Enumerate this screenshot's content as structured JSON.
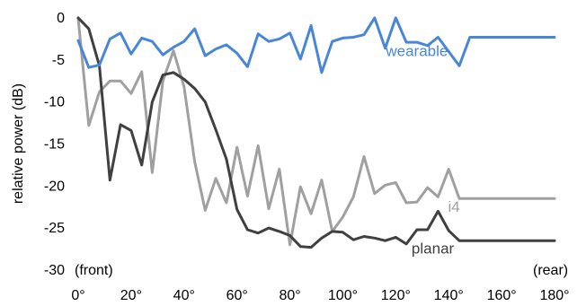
{
  "chart_data": {
    "type": "line",
    "title": "",
    "xlabel": "",
    "ylabel": "relative power (dB)",
    "xlim": [
      0,
      180
    ],
    "ylim": [
      -30,
      0
    ],
    "x_ticks": [
      0,
      20,
      40,
      60,
      80,
      100,
      120,
      140,
      160,
      180
    ],
    "x_tick_labels": [
      "0°",
      "20°",
      "40°",
      "60°",
      "80°",
      "100°",
      "120°",
      "140°",
      "160°",
      "180°"
    ],
    "y_ticks": [
      0,
      -5,
      -10,
      -15,
      -20,
      -25,
      -30
    ],
    "y_tick_labels": [
      "0",
      "-5",
      "-10",
      "-15",
      "-20",
      "-25",
      "-30"
    ],
    "x_annotations": {
      "front": "(front)",
      "rear": "(rear)"
    },
    "grid": false,
    "x": [
      0,
      4,
      8,
      12,
      16,
      20,
      24,
      28,
      32,
      36,
      40,
      44,
      48,
      52,
      56,
      60,
      64,
      68,
      72,
      76,
      80,
      84,
      88,
      92,
      96,
      100,
      104,
      108,
      112,
      116,
      120,
      124,
      128,
      132,
      136,
      140,
      144,
      148,
      152,
      156,
      160,
      164,
      168,
      172,
      176,
      180
    ],
    "series": [
      {
        "name": "wearable",
        "color": "#4a86d8",
        "label_at": [
          128,
          -4
        ],
        "values": [
          -2.8,
          -6.0,
          -5.7,
          -2.6,
          -1.9,
          -4.4,
          -2.5,
          -2.9,
          -4.5,
          -3.6,
          -2.9,
          -1.4,
          -4.6,
          -3.8,
          -3.3,
          -4.3,
          -5.9,
          -2.0,
          -2.9,
          -2.6,
          -1.9,
          -5.0,
          -1.0,
          -6.6,
          -2.9,
          -2.5,
          -2.4,
          -2.1,
          -0.1,
          -3.7,
          -0.1,
          -3.0,
          -3.0,
          -3.4,
          -2.4,
          -4.1,
          -5.8,
          -2.4,
          -2.4,
          -2.4,
          -2.4,
          -2.4,
          -2.4,
          -2.4,
          -2.4,
          -2.4
        ]
      },
      {
        "name": "i4",
        "color": "#a0a0a0",
        "label_at": [
          142,
          -22.5
        ],
        "values": [
          -0.2,
          -12.9,
          -8.9,
          -7.6,
          -7.6,
          -9.1,
          -6.5,
          -18.5,
          -7.6,
          -4.0,
          -8.3,
          -17.2,
          -23.0,
          -19.2,
          -22.1,
          -15.5,
          -21.3,
          -15.3,
          -22.8,
          -18.1,
          -27.1,
          -20.2,
          -23.4,
          -19.4,
          -25.5,
          -23.8,
          -21.4,
          -16.6,
          -21.0,
          -20.0,
          -19.7,
          -22.1,
          -22.0,
          -20.3,
          -21.4,
          -18.1,
          -21.6,
          -21.6,
          -21.6,
          -21.6,
          -21.6,
          -21.6,
          -21.6,
          -21.6,
          -21.6,
          -21.6
        ]
      },
      {
        "name": "planar",
        "color": "#404040",
        "label_at": [
          134,
          -27.5
        ],
        "values": [
          -0.1,
          -1.4,
          -5.8,
          -19.4,
          -12.8,
          -13.5,
          -17.6,
          -10.1,
          -6.9,
          -6.6,
          -7.4,
          -8.5,
          -10.1,
          -13.4,
          -16.9,
          -22.9,
          -25.3,
          -25.7,
          -25.1,
          -25.5,
          -26.0,
          -27.3,
          -27.4,
          -26.3,
          -25.5,
          -25.6,
          -26.5,
          -26.1,
          -26.3,
          -26.6,
          -26.2,
          -27.0,
          -25.3,
          -25.3,
          -23.1,
          -25.4,
          -26.6,
          -26.6,
          -26.6,
          -26.6,
          -26.6,
          -26.6,
          -26.6,
          -26.6,
          -26.6,
          -26.6
        ]
      }
    ]
  }
}
